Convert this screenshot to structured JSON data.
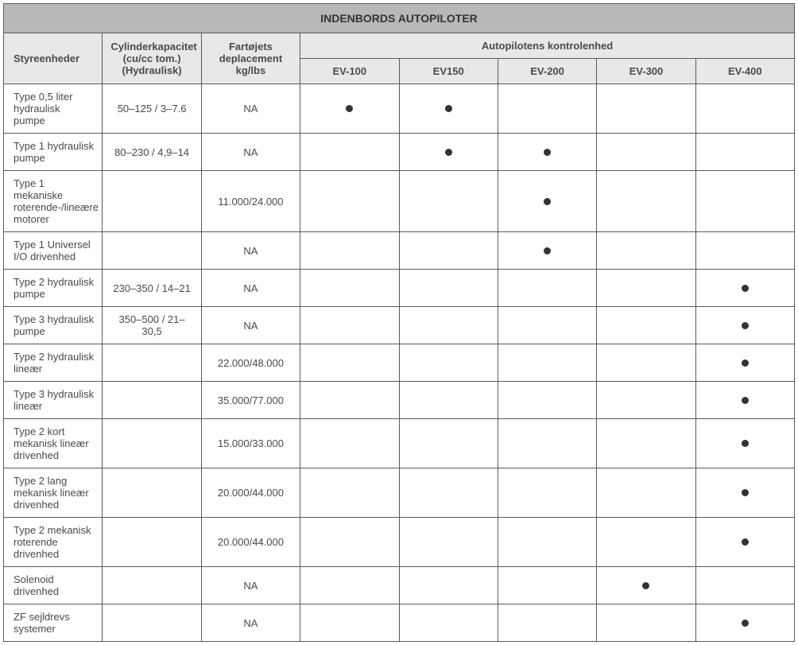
{
  "title": "INDENBORDS AUTOPILOTER",
  "headers": {
    "styreenheder": "Styreenheder",
    "cylinder": "Cylinderkapacitet (cu/cc tom.) (Hydraulisk)",
    "deplace": "Fartøjets deplacement kg/lbs",
    "kontrolenhed": "Autopilotens kontrolenhed",
    "ev100": "EV-100",
    "ev150": "EV150",
    "ev200": "EV-200",
    "ev300": "EV-300",
    "ev400": "EV-400"
  },
  "colors": {
    "title_bg": "#b8b8b8",
    "header_bg": "#e8e8e8",
    "border": "#5a5a5a",
    "text": "#4a4a4a",
    "dot": "#333333",
    "background": "#ffffff"
  },
  "rows": [
    {
      "name": "Type 0,5 liter hydraulisk pumpe",
      "cylinder": "50–125 / 3–7.6",
      "deplace": "NA",
      "ev100": true,
      "ev150": true,
      "ev200": false,
      "ev300": false,
      "ev400": false
    },
    {
      "name": "Type 1 hydraulisk pumpe",
      "cylinder": "80–230 / 4,9–14",
      "deplace": "NA",
      "ev100": false,
      "ev150": true,
      "ev200": true,
      "ev300": false,
      "ev400": false
    },
    {
      "name": "Type 1 mekaniske roterende-/lineære motorer",
      "cylinder": "",
      "deplace": "11.000/24.000",
      "ev100": false,
      "ev150": false,
      "ev200": true,
      "ev300": false,
      "ev400": false
    },
    {
      "name": "Type 1 Universel I/O drivenhed",
      "cylinder": "",
      "deplace": "NA",
      "ev100": false,
      "ev150": false,
      "ev200": true,
      "ev300": false,
      "ev400": false
    },
    {
      "name": "Type 2 hydraulisk pumpe",
      "cylinder": "230–350 / 14–21",
      "deplace": "NA",
      "ev100": false,
      "ev150": false,
      "ev200": false,
      "ev300": false,
      "ev400": true
    },
    {
      "name": "Type 3 hydraulisk pumpe",
      "cylinder": "350–500 / 21–30,5",
      "deplace": "NA",
      "ev100": false,
      "ev150": false,
      "ev200": false,
      "ev300": false,
      "ev400": true
    },
    {
      "name": "Type 2 hydraulisk lineær",
      "cylinder": "",
      "deplace": "22.000/48.000",
      "ev100": false,
      "ev150": false,
      "ev200": false,
      "ev300": false,
      "ev400": true
    },
    {
      "name": "Type 3 hydraulisk lineær",
      "cylinder": "",
      "deplace": "35.000/77.000",
      "ev100": false,
      "ev150": false,
      "ev200": false,
      "ev300": false,
      "ev400": true
    },
    {
      "name": "Type 2 kort mekanisk lineær drivenhed",
      "cylinder": "",
      "deplace": "15.000/33.000",
      "ev100": false,
      "ev150": false,
      "ev200": false,
      "ev300": false,
      "ev400": true
    },
    {
      "name": "Type 2 lang mekanisk lineær drivenhed",
      "cylinder": "",
      "deplace": "20.000/44.000",
      "ev100": false,
      "ev150": false,
      "ev200": false,
      "ev300": false,
      "ev400": true
    },
    {
      "name": "Type 2 mekanisk roterende drivenhed",
      "cylinder": "",
      "deplace": "20.000/44.000",
      "ev100": false,
      "ev150": false,
      "ev200": false,
      "ev300": false,
      "ev400": true
    },
    {
      "name": "Solenoid drivenhed",
      "cylinder": "",
      "deplace": "NA",
      "ev100": false,
      "ev150": false,
      "ev200": false,
      "ev300": true,
      "ev400": false
    },
    {
      "name": "ZF sejldrevs systemer",
      "cylinder": "",
      "deplace": "NA",
      "ev100": false,
      "ev150": false,
      "ev200": false,
      "ev300": false,
      "ev400": true
    }
  ]
}
